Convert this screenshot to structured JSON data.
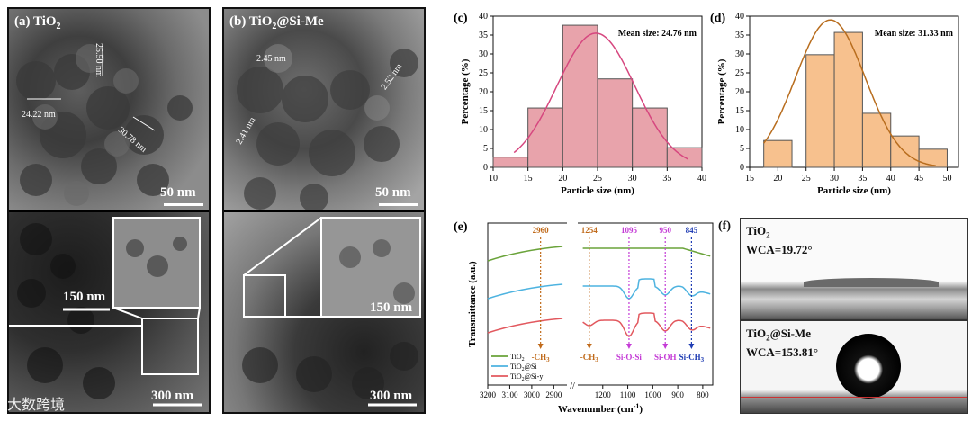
{
  "panel_a": {
    "label": "(a) TiO",
    "label_sub": "2",
    "scale_top": "50 nm",
    "scale_inset": "150 nm",
    "scale_bottom": "300 nm",
    "measures": [
      "25.50 nm",
      "24.22 nm",
      "30.78 nm"
    ]
  },
  "panel_b": {
    "label": "(b) TiO",
    "label_sub": "2",
    "label_rest": "@Si-Me",
    "scale_top": "50 nm",
    "scale_inset": "150 nm",
    "scale_bottom": "300 nm",
    "measures": [
      "2.45 nm",
      "2.52 nm",
      "2.41 nm"
    ]
  },
  "watermark": "大数跨境",
  "chart_data": [
    {
      "id": "c",
      "panel_label": "(c)",
      "type": "bar",
      "categories": [
        12.5,
        17.5,
        22.5,
        27.5,
        32.5,
        37.5
      ],
      "values": [
        2.7,
        15.7,
        37.6,
        23.4,
        15.7,
        5.2
      ],
      "fit_curve": true,
      "fit_mean": 24.76,
      "fit_sd": 5.6,
      "fit_peak": 35.5,
      "fit_range": [
        13,
        38
      ],
      "annotation": "Mean size: 24.76 nm",
      "xlabel": "Particle size (nm)",
      "ylabel": "Percentage (%)",
      "xlim": [
        10,
        40
      ],
      "ylim": [
        0,
        40
      ],
      "xticks": [
        10,
        15,
        20,
        25,
        30,
        35,
        40
      ],
      "yticks": [
        0,
        5,
        10,
        15,
        20,
        25,
        30,
        35,
        40
      ],
      "bar_color": "#e8a3ab",
      "curve_color": "#d6477f"
    },
    {
      "id": "d",
      "panel_label": "(d)",
      "type": "bar",
      "categories": [
        20,
        27.5,
        32.5,
        37.5,
        42.5,
        47.5
      ],
      "values": [
        7.1,
        29.8,
        35.7,
        14.3,
        8.3,
        4.8
      ],
      "bar_widths": [
        5,
        5,
        5,
        5,
        5,
        5
      ],
      "fit_curve": true,
      "fit_mean": 29.3,
      "fit_sd": 6.2,
      "fit_peak": 39,
      "fit_range": [
        17.5,
        48
      ],
      "annotation": "Mean size: 31.33 nm",
      "xlabel": "Particle size (nm)",
      "ylabel": "Percentage (%)",
      "xlim": [
        15,
        52
      ],
      "ylim": [
        0,
        40
      ],
      "xticks": [
        15,
        20,
        25,
        30,
        35,
        40,
        45,
        50
      ],
      "yticks": [
        0,
        5,
        10,
        15,
        20,
        25,
        30,
        35,
        40
      ],
      "bar_color": "#f7c18e",
      "curve_color": "#b86d1e"
    },
    {
      "id": "e",
      "panel_label": "(e)",
      "type": "line",
      "xlabel": "Wavenumber (cm",
      "xlabel_sup": "-1",
      "xlabel_end": ")",
      "ylabel": "Transmittance (a.u.)",
      "xticks_left": [
        3200,
        3100,
        3000,
        2900
      ],
      "xticks_right": [
        1200,
        1100,
        1000,
        900,
        800
      ],
      "peaks": [
        {
          "wn": 2960,
          "top": "2960",
          "bottom": "-CH",
          "bottom_sub": "3",
          "color": "#c06a1a"
        },
        {
          "wn": 1254,
          "top": "1254",
          "bottom": "-CH",
          "bottom_sub": "3",
          "color": "#c06a1a"
        },
        {
          "wn": 1095,
          "top": "1095",
          "bottom": "Si-O-Si",
          "bottom_sub": "",
          "color": "#c43bd6"
        },
        {
          "wn": 950,
          "top": "950",
          "bottom": "Si-OH",
          "bottom_sub": "",
          "color": "#c43bd6"
        },
        {
          "wn": 845,
          "top": "845",
          "bottom": "Si-CH",
          "bottom_sub": "3",
          "color": "#1f3cb3"
        }
      ],
      "series": [
        {
          "name": "TiO",
          "sub": "2",
          "rest": "",
          "color": "#6aa33a"
        },
        {
          "name": "TiO",
          "sub": "2",
          "rest": "@Si",
          "color": "#4db3e0"
        },
        {
          "name": "TiO",
          "sub": "2",
          "rest": "@Si-y",
          "color": "#e2585e"
        }
      ]
    }
  ],
  "panel_f": {
    "label": "(f)",
    "top_name": "TiO",
    "top_sub": "2",
    "top_wca": "WCA=19.72°",
    "bottom_name": "TiO",
    "bottom_sub": "2",
    "bottom_rest": "@Si-Me",
    "bottom_wca": "WCA=153.81°"
  }
}
